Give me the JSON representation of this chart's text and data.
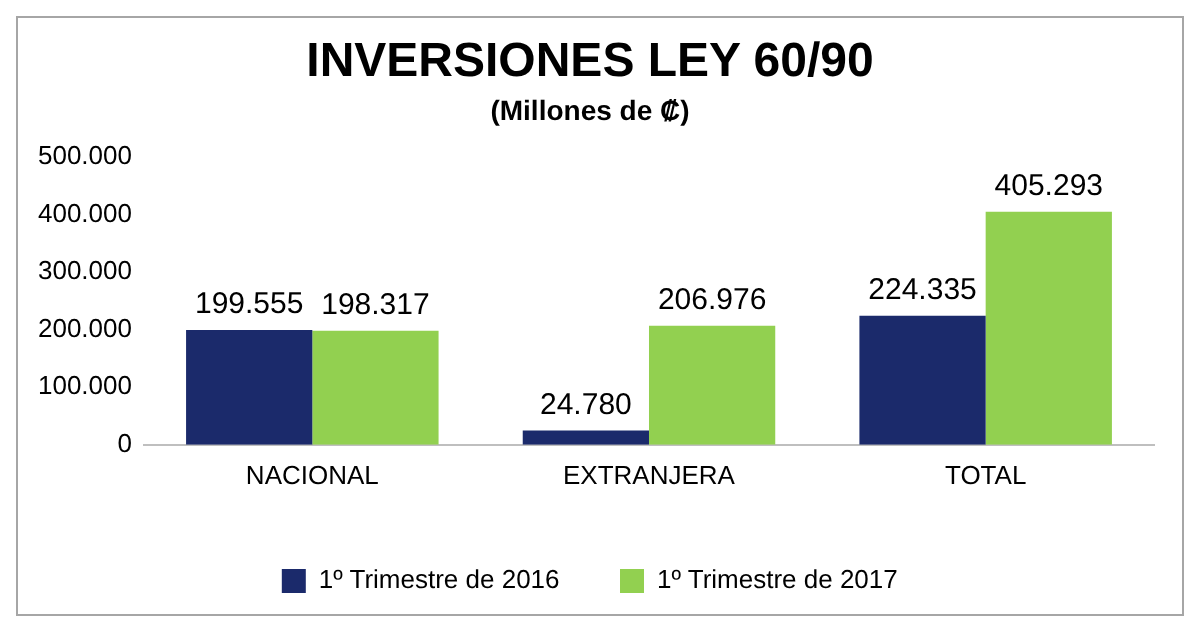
{
  "chart_data": {
    "type": "bar",
    "title": "INVERSIONES LEY 60/90",
    "subtitle": "(Millones de ₡)",
    "categories": [
      "NACIONAL",
      "EXTRANJERA",
      "TOTAL"
    ],
    "series": [
      {
        "name": "1º Trimestre de 2016",
        "color": "#1b2a6b",
        "values": [
          199555,
          24780,
          224335
        ],
        "value_labels": [
          "199.555",
          "24.780",
          "224.335"
        ]
      },
      {
        "name": "1º Trimestre de 2017",
        "color": "#92d050",
        "values": [
          198317,
          206976,
          405293
        ],
        "value_labels": [
          "198.317",
          "206.976",
          "405.293"
        ]
      }
    ],
    "ylim": [
      0,
      500000
    ],
    "yticks": [
      {
        "value": 0,
        "label": "0"
      },
      {
        "value": 100000,
        "label": "100.000"
      },
      {
        "value": 200000,
        "label": "200.000"
      },
      {
        "value": 300000,
        "label": "300.000"
      },
      {
        "value": 400000,
        "label": "400.000"
      },
      {
        "value": 500000,
        "label": "500.000"
      }
    ],
    "grid": false,
    "legend": "bottom"
  }
}
